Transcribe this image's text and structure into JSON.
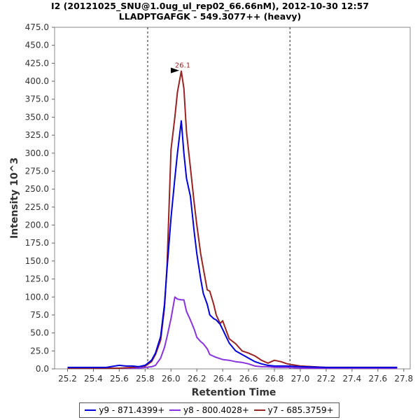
{
  "chart_data": {
    "type": "line",
    "title": "I2 (20121025_SNU@1.0ug_ul_rep02_66.66nM), 2012-10-30 12:57",
    "subtitle": "LLADPTGAFGK - 549.3077++ (heavy)",
    "xlabel": "Retention Time",
    "ylabel": "Intensity 10^3",
    "xlim": [
      25.1,
      27.85
    ],
    "ylim": [
      0,
      475
    ],
    "x_ticks": [
      "25.2",
      "25.4",
      "25.6",
      "25.8",
      "26.0",
      "26.2",
      "26.4",
      "26.6",
      "26.8",
      "27.0",
      "27.2",
      "27.4",
      "27.6",
      "27.8"
    ],
    "y_ticks": [
      "0.0",
      "25.0",
      "50.0",
      "75.0",
      "100.0",
      "125.0",
      "150.0",
      "175.0",
      "200.0",
      "225.0",
      "250.0",
      "275.0",
      "300.0",
      "325.0",
      "350.0",
      "375.0",
      "400.0",
      "425.0",
      "450.0",
      "475.0"
    ],
    "grid": false,
    "legend_position": "bottom",
    "vlines": [
      25.82,
      26.92
    ],
    "annotation": {
      "label": "26.1",
      "x": 26.08,
      "y": 414
    },
    "series": [
      {
        "name": "y9 - 871.4399+",
        "color": "#0000dd",
        "x": [
          25.2,
          25.4,
          25.5,
          25.6,
          25.65,
          25.7,
          25.75,
          25.8,
          25.85,
          25.88,
          25.92,
          25.95,
          25.97,
          26.0,
          26.03,
          26.05,
          26.08,
          26.1,
          26.12,
          26.15,
          26.18,
          26.2,
          26.23,
          26.25,
          26.28,
          26.3,
          26.33,
          26.35,
          26.38,
          26.4,
          26.45,
          26.5,
          26.55,
          26.6,
          26.65,
          26.7,
          26.75,
          26.8,
          26.9,
          27.0,
          27.2,
          27.4,
          27.6,
          27.75
        ],
        "y": [
          2,
          2,
          2,
          5,
          4,
          4,
          3,
          5,
          12,
          22,
          45,
          90,
          140,
          210,
          265,
          300,
          345,
          300,
          265,
          240,
          190,
          160,
          125,
          105,
          90,
          75,
          70,
          68,
          62,
          55,
          36,
          25,
          20,
          15,
          10,
          7,
          5,
          4,
          4,
          3,
          2,
          2,
          2,
          2
        ]
      },
      {
        "name": "y8 - 800.4028+",
        "color": "#8833dd",
        "x": [
          25.2,
          25.4,
          25.6,
          25.7,
          25.75,
          25.8,
          25.85,
          25.88,
          25.92,
          25.95,
          25.97,
          26.0,
          26.03,
          26.05,
          26.08,
          26.1,
          26.12,
          26.15,
          26.18,
          26.2,
          26.23,
          26.25,
          26.28,
          26.3,
          26.35,
          26.4,
          26.45,
          26.5,
          26.55,
          26.6,
          26.65,
          26.7,
          26.75,
          26.8,
          26.9,
          27.0,
          27.2,
          27.4,
          27.6,
          27.75
        ],
        "y": [
          1,
          1,
          1,
          1,
          1,
          2,
          3,
          5,
          15,
          30,
          45,
          70,
          100,
          97,
          96,
          96,
          80,
          68,
          55,
          44,
          38,
          35,
          28,
          20,
          16,
          13,
          12,
          10,
          9,
          7,
          4,
          3,
          3,
          2,
          2,
          1,
          1,
          1,
          1,
          1
        ]
      },
      {
        "name": "y7 - 685.3759+",
        "color": "#992222",
        "x": [
          25.2,
          25.4,
          25.6,
          25.7,
          25.8,
          25.85,
          25.88,
          25.92,
          25.95,
          25.97,
          26.0,
          26.03,
          26.05,
          26.08,
          26.1,
          26.12,
          26.15,
          26.18,
          26.2,
          26.23,
          26.25,
          26.28,
          26.3,
          26.33,
          26.35,
          26.38,
          26.4,
          26.45,
          26.5,
          26.55,
          26.6,
          26.65,
          26.7,
          26.75,
          26.8,
          26.85,
          26.9,
          27.0,
          27.2,
          27.4,
          27.6,
          27.75
        ],
        "y": [
          1,
          1,
          1,
          2,
          4,
          10,
          20,
          40,
          85,
          145,
          305,
          350,
          385,
          414,
          390,
          330,
          280,
          230,
          200,
          160,
          140,
          110,
          108,
          90,
          75,
          63,
          67,
          42,
          35,
          25,
          22,
          18,
          12,
          8,
          12,
          10,
          7,
          4,
          2,
          2,
          2,
          2
        ]
      }
    ]
  }
}
